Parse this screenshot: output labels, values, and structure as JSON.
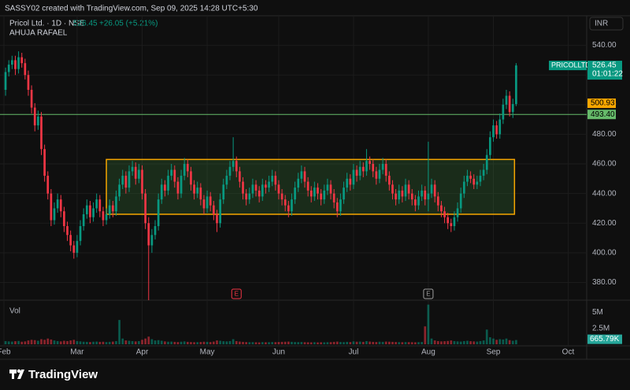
{
  "chart_data": {
    "type": "candlestick",
    "watermark": "SASSY02 created with TradingView.com, Sep 09, 2025 14:28 UTC+5:30",
    "title": "Pricol Ltd. · 1D · NSE",
    "change": "+26.05 (+5.21%)",
    "author": "AHUJA RAFAEL",
    "currency": "INR",
    "symbol": "PRICOLLTD",
    "countdown": "01:01:22",
    "volume_title": "Vol",
    "logo": "TradingView",
    "up_color": "#089981",
    "down_color": "#f23645",
    "ylim": [
      368,
      560
    ],
    "yticks": [
      {
        "value": 380,
        "label": "380.00"
      },
      {
        "value": 400,
        "label": "400.00"
      },
      {
        "value": 420,
        "label": "420.00"
      },
      {
        "value": 440,
        "label": "440.00"
      },
      {
        "value": 460,
        "label": "460.00"
      },
      {
        "value": 480,
        "label": "480.00"
      },
      {
        "value": 500,
        "label": "500.00"
      },
      {
        "value": 520,
        "label": "520.00"
      },
      {
        "value": 540,
        "label": "540.00"
      }
    ],
    "xlim": [
      -0.5,
      178.7
    ],
    "xticks": [
      {
        "value": -0.5,
        "label": "Feb"
      },
      {
        "value": 22,
        "label": "Mar"
      },
      {
        "value": 42,
        "label": "Apr"
      },
      {
        "value": 62,
        "label": "May"
      },
      {
        "value": 84,
        "label": "Jun"
      },
      {
        "value": 107,
        "label": "Jul"
      },
      {
        "value": 130,
        "label": "Aug"
      },
      {
        "value": 150,
        "label": "Sep"
      },
      {
        "value": 173,
        "label": "Oct"
      }
    ],
    "vlim": [
      0,
      6400000
    ],
    "vticks": [
      {
        "value": 5000000,
        "label": "5M"
      },
      {
        "value": 2500000,
        "label": "2.5M"
      }
    ],
    "last_volume_label": "665.79K",
    "level": {
      "value": 493.4,
      "label": "493.40",
      "color": "#66bb6a"
    },
    "ma": {
      "value": 500.93,
      "label": "500.93",
      "color": "#f7a600"
    },
    "box": {
      "start": 31,
      "end": 156.5,
      "top": 463,
      "bottom": 426,
      "color": "#f7a600"
    },
    "earnings": [
      {
        "index": 71,
        "label": "E",
        "color": "#f23645"
      },
      {
        "index": 130,
        "label": "E",
        "color": "#9e9e9e"
      }
    ],
    "ohlc": [
      [
        510,
        525,
        506,
        522
      ],
      [
        522,
        530,
        519,
        527
      ],
      [
        527,
        533,
        524,
        530
      ],
      [
        530,
        533,
        520,
        524
      ],
      [
        524,
        536,
        521,
        532
      ],
      [
        532,
        535,
        525,
        528
      ],
      [
        528,
        531,
        517,
        520
      ],
      [
        520,
        523,
        506,
        510
      ],
      [
        510,
        513,
        494,
        498
      ],
      [
        498,
        501,
        482,
        486
      ],
      [
        486,
        496,
        483,
        492
      ],
      [
        492,
        495,
        466,
        470
      ],
      [
        470,
        473,
        448,
        452
      ],
      [
        452,
        455,
        436,
        440
      ],
      [
        440,
        443,
        418,
        422
      ],
      [
        422,
        434,
        419,
        430
      ],
      [
        430,
        440,
        427,
        436
      ],
      [
        436,
        439,
        424,
        428
      ],
      [
        428,
        431,
        414,
        418
      ],
      [
        418,
        421,
        408,
        412
      ],
      [
        412,
        415,
        401,
        405
      ],
      [
        405,
        408,
        396,
        400
      ],
      [
        400,
        412,
        397,
        408
      ],
      [
        408,
        422,
        405,
        418
      ],
      [
        418,
        430,
        415,
        426
      ],
      [
        426,
        436,
        423,
        432
      ],
      [
        432,
        435,
        420,
        424
      ],
      [
        424,
        434,
        421,
        430
      ],
      [
        430,
        440,
        427,
        436
      ],
      [
        436,
        439,
        424,
        428
      ],
      [
        428,
        431,
        418,
        422
      ],
      [
        422,
        430,
        419,
        426
      ],
      [
        426,
        436,
        423,
        432
      ],
      [
        432,
        435,
        424,
        428
      ],
      [
        428,
        442,
        425,
        438
      ],
      [
        438,
        450,
        435,
        446
      ],
      [
        446,
        456,
        443,
        452
      ],
      [
        452,
        455,
        440,
        444
      ],
      [
        444,
        459,
        441,
        455
      ],
      [
        455,
        462,
        452,
        458
      ],
      [
        458,
        461,
        446,
        450
      ],
      [
        450,
        460,
        447,
        456
      ],
      [
        456,
        459,
        436,
        440
      ],
      [
        440,
        443,
        416,
        420
      ],
      [
        420,
        424,
        368,
        405
      ],
      [
        405,
        416,
        400,
        412
      ],
      [
        412,
        422,
        409,
        418
      ],
      [
        418,
        440,
        415,
        436
      ],
      [
        436,
        450,
        433,
        446
      ],
      [
        446,
        449,
        438,
        442
      ],
      [
        442,
        456,
        439,
        452
      ],
      [
        452,
        460,
        449,
        456
      ],
      [
        456,
        459,
        444,
        448
      ],
      [
        448,
        451,
        436,
        440
      ],
      [
        440,
        456,
        437,
        452
      ],
      [
        452,
        464,
        449,
        460
      ],
      [
        460,
        463,
        451,
        455
      ],
      [
        455,
        458,
        442,
        446
      ],
      [
        446,
        449,
        436,
        440
      ],
      [
        440,
        448,
        437,
        444
      ],
      [
        444,
        447,
        432,
        436
      ],
      [
        436,
        439,
        426,
        430
      ],
      [
        430,
        442,
        427,
        438
      ],
      [
        438,
        441,
        428,
        432
      ],
      [
        432,
        435,
        422,
        426
      ],
      [
        426,
        429,
        414,
        420
      ],
      [
        420,
        440,
        417,
        436
      ],
      [
        436,
        450,
        433,
        446
      ],
      [
        446,
        456,
        443,
        452
      ],
      [
        452,
        462,
        449,
        458
      ],
      [
        458,
        478,
        455,
        462
      ],
      [
        462,
        465,
        451,
        455
      ],
      [
        455,
        458,
        444,
        448
      ],
      [
        448,
        451,
        436,
        440
      ],
      [
        440,
        443,
        432,
        436
      ],
      [
        436,
        444,
        433,
        440
      ],
      [
        440,
        450,
        437,
        446
      ],
      [
        446,
        449,
        438,
        442
      ],
      [
        442,
        445,
        434,
        438
      ],
      [
        438,
        450,
        435,
        446
      ],
      [
        446,
        449,
        440,
        444
      ],
      [
        444,
        452,
        441,
        448
      ],
      [
        448,
        456,
        445,
        452
      ],
      [
        452,
        455,
        442,
        446
      ],
      [
        446,
        449,
        436,
        440
      ],
      [
        440,
        443,
        432,
        436
      ],
      [
        436,
        439,
        428,
        432
      ],
      [
        432,
        435,
        424,
        428
      ],
      [
        428,
        440,
        425,
        436
      ],
      [
        436,
        448,
        433,
        444
      ],
      [
        444,
        454,
        441,
        450
      ],
      [
        450,
        459,
        447,
        455
      ],
      [
        455,
        458,
        444,
        448
      ],
      [
        448,
        451,
        438,
        442
      ],
      [
        442,
        445,
        434,
        438
      ],
      [
        438,
        448,
        435,
        444
      ],
      [
        444,
        447,
        436,
        440
      ],
      [
        440,
        443,
        432,
        436
      ],
      [
        436,
        446,
        433,
        442
      ],
      [
        442,
        450,
        439,
        446
      ],
      [
        446,
        449,
        436,
        440
      ],
      [
        440,
        443,
        430,
        434
      ],
      [
        434,
        437,
        424,
        428
      ],
      [
        428,
        440,
        425,
        436
      ],
      [
        436,
        448,
        433,
        444
      ],
      [
        444,
        454,
        441,
        450
      ],
      [
        450,
        453,
        442,
        446
      ],
      [
        446,
        460,
        443,
        456
      ],
      [
        456,
        459,
        448,
        452
      ],
      [
        452,
        462,
        449,
        458
      ],
      [
        458,
        461,
        451,
        455
      ],
      [
        455,
        470,
        452,
        462
      ],
      [
        462,
        465,
        456,
        460
      ],
      [
        460,
        463,
        451,
        455
      ],
      [
        455,
        458,
        446,
        450
      ],
      [
        450,
        460,
        447,
        456
      ],
      [
        456,
        464,
        453,
        460
      ],
      [
        460,
        463,
        448,
        452
      ],
      [
        452,
        455,
        442,
        446
      ],
      [
        446,
        449,
        436,
        440
      ],
      [
        440,
        443,
        432,
        436
      ],
      [
        436,
        446,
        433,
        442
      ],
      [
        442,
        445,
        434,
        438
      ],
      [
        438,
        450,
        435,
        446
      ],
      [
        446,
        449,
        436,
        440
      ],
      [
        440,
        443,
        432,
        436
      ],
      [
        436,
        439,
        428,
        432
      ],
      [
        432,
        442,
        429,
        438
      ],
      [
        438,
        446,
        435,
        442
      ],
      [
        442,
        445,
        432,
        436
      ],
      [
        436,
        475,
        428,
        440
      ],
      [
        440,
        450,
        437,
        446
      ],
      [
        446,
        449,
        434,
        438
      ],
      [
        438,
        441,
        428,
        432
      ],
      [
        432,
        435,
        424,
        428
      ],
      [
        428,
        431,
        420,
        424
      ],
      [
        424,
        427,
        416,
        420
      ],
      [
        420,
        423,
        414,
        418
      ],
      [
        418,
        428,
        415,
        424
      ],
      [
        424,
        434,
        421,
        430
      ],
      [
        430,
        444,
        427,
        440
      ],
      [
        440,
        452,
        437,
        448
      ],
      [
        448,
        456,
        445,
        452
      ],
      [
        452,
        455,
        447,
        450
      ],
      [
        450,
        453,
        443,
        446
      ],
      [
        446,
        452,
        443,
        448
      ],
      [
        448,
        456,
        445,
        452
      ],
      [
        452,
        460,
        449,
        456
      ],
      [
        456,
        470,
        453,
        466
      ],
      [
        466,
        482,
        463,
        478
      ],
      [
        478,
        490,
        475,
        486
      ],
      [
        486,
        489,
        477,
        480
      ],
      [
        480,
        494,
        477,
        490
      ],
      [
        490,
        504,
        487,
        500
      ],
      [
        500,
        510,
        497,
        506
      ],
      [
        506,
        509,
        492,
        495
      ],
      [
        495,
        504,
        491,
        500.4
      ],
      [
        500.4,
        528,
        499,
        526.45
      ]
    ],
    "volumes": [
      500000,
      450000,
      420000,
      480000,
      520000,
      400000,
      450000,
      600000,
      700000,
      650000,
      550000,
      800000,
      700000,
      900000,
      750000,
      600000,
      500000,
      450000,
      550000,
      500000,
      600000,
      700000,
      500000,
      450000,
      400000,
      380000,
      350000,
      400000,
      420000,
      380000,
      400000,
      350000,
      380000,
      420000,
      500000,
      3800000,
      900000,
      600000,
      550000,
      500000,
      450000,
      500000,
      700000,
      900000,
      1200000,
      800000,
      600000,
      650000,
      550000,
      450000,
      400000,
      420000,
      380000,
      350000,
      400000,
      450000,
      380000,
      350000,
      330000,
      340000,
      360000,
      400000,
      380000,
      350000,
      420000,
      600000,
      550000,
      480000,
      450000,
      500000,
      800000,
      500000,
      420000,
      380000,
      350000,
      330000,
      340000,
      320000,
      300000,
      340000,
      320000,
      330000,
      350000,
      340000,
      360000,
      380000,
      400000,
      420000,
      380000,
      350000,
      340000,
      360000,
      330000,
      320000,
      310000,
      330000,
      300000,
      320000,
      310000,
      330000,
      340000,
      380000,
      420000,
      360000,
      340000,
      380000,
      350000,
      450000,
      400000,
      420000,
      380000,
      500000,
      420000,
      380000,
      360000,
      400000,
      380000,
      420000,
      400000,
      380000,
      360000,
      340000,
      330000,
      350000,
      340000,
      330000,
      320000,
      340000,
      360000,
      2800000,
      6200000,
      900000,
      600000,
      500000,
      450000,
      480000,
      520000,
      600000,
      500000,
      450000,
      420000,
      500000,
      550000,
      480000,
      450000,
      420000,
      500000,
      600000,
      2300000,
      1100000,
      900000,
      700000,
      800000,
      750000,
      900000,
      650000,
      550000,
      665790
    ]
  }
}
